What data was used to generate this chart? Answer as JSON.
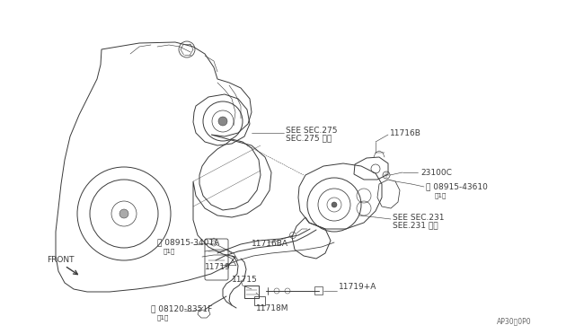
{
  "background_color": "#ffffff",
  "line_color": "#3a3a3a",
  "text_color": "#3a3a3a",
  "figsize": [
    6.4,
    3.72
  ],
  "dpi": 100,
  "labels": {
    "SEE_SEC275_en": "SEE SEC.275",
    "SEE_SEC275_jp": "SEC.275 参照",
    "11716B": "11716B",
    "23100C": "23100C",
    "08915_43610": "Ⓜ 08915-43610",
    "sub1": "（1）",
    "SEE_SEC231_en": "SEE SEC.231",
    "SEE_SEC231_jp": "SEE.231 参照",
    "11716BA": "11716BA",
    "08915_3401A_label": "Ⓜ 08915-3401A",
    "sub2": "（1）",
    "11719": "11719",
    "11719A": "11719+A",
    "08120_8351F_label": "Ⓑ 08120-8351F",
    "sub3": "（1）",
    "11715": "11715",
    "11718M": "11718M",
    "FRONT": "FRONT",
    "diagram_code": "AP30：0P0"
  }
}
